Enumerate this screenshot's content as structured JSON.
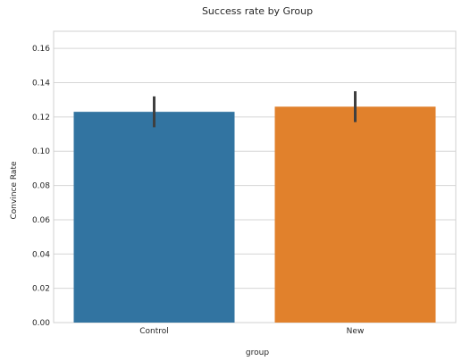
{
  "chart_data": {
    "type": "bar",
    "title": "Success rate by Group",
    "xlabel": "group",
    "ylabel": "Convince Rate",
    "categories": [
      "Control",
      "New"
    ],
    "values": [
      0.123,
      0.126
    ],
    "error_low": [
      0.114,
      0.117
    ],
    "error_high": [
      0.132,
      0.135
    ],
    "ylim": [
      0,
      0.17
    ],
    "yticks": [
      0.0,
      0.02,
      0.04,
      0.06,
      0.08,
      0.1,
      0.12,
      0.14,
      0.16
    ],
    "ytick_labels": [
      "0.00",
      "0.02",
      "0.04",
      "0.06",
      "0.08",
      "0.10",
      "0.12",
      "0.14",
      "0.16"
    ],
    "grid": true,
    "colors": [
      "#3274a1",
      "#e1812c"
    ],
    "errorbar_color": "#3f3f3f"
  }
}
